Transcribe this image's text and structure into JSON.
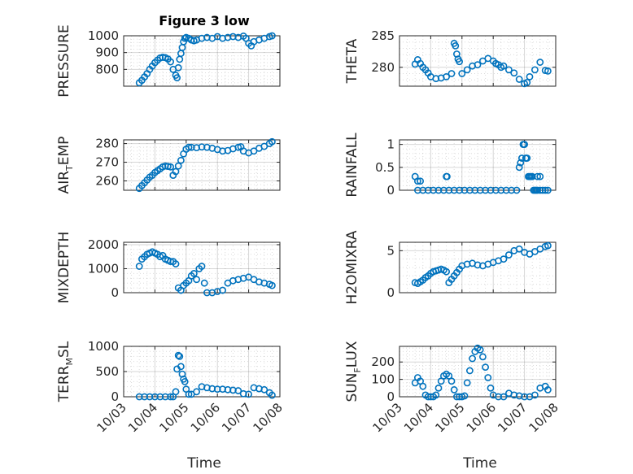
{
  "figure": {
    "title": "Figure 3 low"
  },
  "chart_data": [
    {
      "type": "scatter",
      "panel": "PRESSURE",
      "ylabel": {
        "parts": [
          "PRESSURE"
        ]
      },
      "ylim": [
        700,
        1000
      ],
      "yticks": [
        800,
        900,
        1000
      ],
      "xlim": [
        "2023-10-03",
        "2023-10-08"
      ],
      "grid": true,
      "series": [
        {
          "x": [
            "2023-10-03 12:00",
            "2023-10-03 14:00",
            "2023-10-03 16:00",
            "2023-10-03 18:00",
            "2023-10-03 20:00",
            "2023-10-03 22:00",
            "2023-10-04 00:00",
            "2023-10-04 02:00",
            "2023-10-04 04:00",
            "2023-10-04 06:00",
            "2023-10-04 08:00",
            "2023-10-04 10:00",
            "2023-10-04 12:00",
            "2023-10-04 14:00",
            "2023-10-04 16:00",
            "2023-10-04 17:00",
            "2023-10-04 18:00",
            "2023-10-04 19:00",
            "2023-10-04 20:00",
            "2023-10-04 21:00",
            "2023-10-04 22:00",
            "2023-10-04 23:00",
            "2023-10-05 00:00",
            "2023-10-05 02:00",
            "2023-10-05 04:00",
            "2023-10-05 06:00",
            "2023-10-05 08:00",
            "2023-10-05 12:00",
            "2023-10-05 16:00",
            "2023-10-05 20:00",
            "2023-10-06 00:00",
            "2023-10-06 04:00",
            "2023-10-06 08:00",
            "2023-10-06 12:00",
            "2023-10-06 16:00",
            "2023-10-06 20:00",
            "2023-10-06 22:00",
            "2023-10-07 00:00",
            "2023-10-07 02:00",
            "2023-10-07 04:00",
            "2023-10-07 08:00",
            "2023-10-07 12:00",
            "2023-10-07 16:00",
            "2023-10-07 18:00"
          ],
          "y": [
            720,
            735,
            755,
            775,
            800,
            820,
            840,
            855,
            868,
            872,
            870,
            862,
            845,
            800,
            765,
            750,
            810,
            860,
            895,
            930,
            965,
            985,
            990,
            985,
            975,
            970,
            975,
            985,
            990,
            985,
            995,
            985,
            990,
            995,
            990,
            998,
            985,
            955,
            940,
            965,
            975,
            985,
            995,
            1000
          ]
        }
      ]
    },
    {
      "type": "scatter",
      "panel": "THETA",
      "ylabel": {
        "parts": [
          "THETA"
        ]
      },
      "ylim": [
        277,
        285
      ],
      "yticks": [
        280,
        285
      ],
      "xlim": [
        "2023-10-03",
        "2023-10-08"
      ],
      "grid": true,
      "series": [
        {
          "x": [
            "2023-10-03 12:00",
            "2023-10-03 14:00",
            "2023-10-03 16:00",
            "2023-10-03 18:00",
            "2023-10-03 20:00",
            "2023-10-03 22:00",
            "2023-10-04 00:00",
            "2023-10-04 04:00",
            "2023-10-04 08:00",
            "2023-10-04 12:00",
            "2023-10-04 16:00",
            "2023-10-04 18:00",
            "2023-10-04 19:00",
            "2023-10-04 20:00",
            "2023-10-04 21:00",
            "2023-10-04 22:00",
            "2023-10-05 00:00",
            "2023-10-05 04:00",
            "2023-10-05 08:00",
            "2023-10-05 12:00",
            "2023-10-05 16:00",
            "2023-10-05 20:00",
            "2023-10-06 00:00",
            "2023-10-06 02:00",
            "2023-10-06 04:00",
            "2023-10-06 06:00",
            "2023-10-06 08:00",
            "2023-10-06 12:00",
            "2023-10-06 16:00",
            "2023-10-06 20:00",
            "2023-10-07 00:00",
            "2023-10-07 02:00",
            "2023-10-07 04:00",
            "2023-10-07 08:00",
            "2023-10-07 12:00",
            "2023-10-07 16:00",
            "2023-10-07 18:00"
          ],
          "y": [
            280.5,
            281.2,
            280.6,
            280.0,
            279.6,
            279.1,
            278.5,
            278.2,
            278.3,
            278.5,
            279.0,
            283.8,
            283.4,
            282.1,
            281.3,
            280.9,
            279.0,
            279.6,
            280.2,
            280.4,
            281.0,
            281.4,
            281.0,
            280.6,
            280.4,
            280.0,
            280.2,
            279.6,
            279.1,
            278.1,
            277.4,
            277.6,
            278.5,
            279.6,
            280.8,
            279.5,
            279.4
          ]
        }
      ]
    },
    {
      "type": "scatter",
      "panel": "AIR_TEMP",
      "ylabel": {
        "parts": [
          "AIR",
          "T",
          "EMP"
        ]
      },
      "ylim": [
        255,
        282
      ],
      "yticks": [
        260,
        270,
        280
      ],
      "xlim": [
        "2023-10-03",
        "2023-10-08"
      ],
      "grid": true,
      "series": [
        {
          "x": [
            "2023-10-03 12:00",
            "2023-10-03 14:00",
            "2023-10-03 16:00",
            "2023-10-03 18:00",
            "2023-10-03 20:00",
            "2023-10-03 22:00",
            "2023-10-04 00:00",
            "2023-10-04 02:00",
            "2023-10-04 04:00",
            "2023-10-04 06:00",
            "2023-10-04 08:00",
            "2023-10-04 10:00",
            "2023-10-04 12:00",
            "2023-10-04 14:00",
            "2023-10-04 16:00",
            "2023-10-04 18:00",
            "2023-10-04 20:00",
            "2023-10-04 22:00",
            "2023-10-05 00:00",
            "2023-10-05 02:00",
            "2023-10-05 04:00",
            "2023-10-05 08:00",
            "2023-10-05 12:00",
            "2023-10-05 16:00",
            "2023-10-05 20:00",
            "2023-10-06 00:00",
            "2023-10-06 04:00",
            "2023-10-06 08:00",
            "2023-10-06 12:00",
            "2023-10-06 16:00",
            "2023-10-06 18:00",
            "2023-10-06 20:00",
            "2023-10-07 00:00",
            "2023-10-07 04:00",
            "2023-10-07 08:00",
            "2023-10-07 12:00",
            "2023-10-07 16:00",
            "2023-10-07 18:00"
          ],
          "y": [
            256,
            257.5,
            259,
            260.5,
            262,
            263,
            264.5,
            265.5,
            266.5,
            267.5,
            268,
            267.8,
            267.5,
            263,
            265,
            268,
            271,
            274.5,
            277,
            278,
            278,
            277.8,
            278.2,
            278.0,
            277.5,
            276.8,
            276,
            276.3,
            277.2,
            278,
            278.3,
            276,
            275,
            276,
            277.5,
            278.5,
            280,
            281
          ]
        }
      ]
    },
    {
      "type": "scatter",
      "panel": "RAINFALL",
      "ylabel": {
        "parts": [
          "RAINFALL"
        ]
      },
      "ylim": [
        0,
        1.1
      ],
      "yticks": [
        0,
        0.5,
        1
      ],
      "xlim": [
        "2023-10-03",
        "2023-10-08"
      ],
      "grid": true,
      "series": [
        {
          "x": [
            "2023-10-03 12:00",
            "2023-10-03 14:00",
            "2023-10-03 16:00",
            "2023-10-03 14:00",
            "2023-10-03 18:00",
            "2023-10-03 22:00",
            "2023-10-04 02:00",
            "2023-10-04 06:00",
            "2023-10-04 10:00",
            "2023-10-04 12:00",
            "2023-10-04 12:30",
            "2023-10-04 14:00",
            "2023-10-04 18:00",
            "2023-10-04 22:00",
            "2023-10-05 02:00",
            "2023-10-05 06:00",
            "2023-10-05 10:00",
            "2023-10-05 14:00",
            "2023-10-05 18:00",
            "2023-10-05 22:00",
            "2023-10-06 02:00",
            "2023-10-06 06:00",
            "2023-10-06 10:00",
            "2023-10-06 14:00",
            "2023-10-06 18:00",
            "2023-10-06 20:00",
            "2023-10-06 21:00",
            "2023-10-06 22:00",
            "2023-10-06 23:00",
            "2023-10-07 00:00",
            "2023-10-07 01:00",
            "2023-10-07 02:00",
            "2023-10-07 03:00",
            "2023-10-07 04:00",
            "2023-10-07 05:00",
            "2023-10-07 06:00",
            "2023-10-07 07:00",
            "2023-10-07 08:00",
            "2023-10-07 09:00",
            "2023-10-07 10:00",
            "2023-10-07 12:00",
            "2023-10-07 14:00",
            "2023-10-07 16:00",
            "2023-10-07 18:00",
            "2023-10-07 10:00",
            "2023-10-07 12:00"
          ],
          "y": [
            0.3,
            0.2,
            0.2,
            0,
            0,
            0,
            0,
            0,
            0,
            0.3,
            0.3,
            0,
            0,
            0,
            0,
            0,
            0,
            0,
            0,
            0,
            0,
            0,
            0,
            0,
            0,
            0.5,
            0.6,
            0.7,
            1.0,
            1.0,
            0.7,
            0.7,
            0.3,
            0.3,
            0.3,
            0.3,
            0,
            0,
            0,
            0,
            0,
            0,
            0,
            0,
            0.3,
            0.3
          ]
        }
      ]
    },
    {
      "type": "scatter",
      "panel": "MIXDEPTH",
      "ylabel": {
        "parts": [
          "MIXDEPTH"
        ]
      },
      "ylim": [
        0,
        2100
      ],
      "yticks": [
        0,
        1000,
        2000
      ],
      "xlim": [
        "2023-10-03",
        "2023-10-08"
      ],
      "grid": true,
      "series": [
        {
          "x": [
            "2023-10-03 12:00",
            "2023-10-03 14:00",
            "2023-10-03 16:00",
            "2023-10-03 18:00",
            "2023-10-03 20:00",
            "2023-10-03 22:00",
            "2023-10-04 00:00",
            "2023-10-04 02:00",
            "2023-10-04 04:00",
            "2023-10-04 06:00",
            "2023-10-04 08:00",
            "2023-10-04 10:00",
            "2023-10-04 12:00",
            "2023-10-04 14:00",
            "2023-10-04 16:00",
            "2023-10-04 18:00",
            "2023-10-04 20:00",
            "2023-10-04 22:00",
            "2023-10-05 00:00",
            "2023-10-05 02:00",
            "2023-10-05 04:00",
            "2023-10-05 06:00",
            "2023-10-05 08:00",
            "2023-10-05 10:00",
            "2023-10-05 12:00",
            "2023-10-05 14:00",
            "2023-10-05 16:00",
            "2023-10-05 20:00",
            "2023-10-06 00:00",
            "2023-10-06 04:00",
            "2023-10-06 08:00",
            "2023-10-06 12:00",
            "2023-10-06 16:00",
            "2023-10-06 20:00",
            "2023-10-07 00:00",
            "2023-10-07 04:00",
            "2023-10-07 08:00",
            "2023-10-07 12:00",
            "2023-10-07 16:00",
            "2023-10-07 18:00"
          ],
          "y": [
            1100,
            1400,
            1500,
            1600,
            1650,
            1700,
            1650,
            1600,
            1500,
            1550,
            1400,
            1350,
            1300,
            1300,
            1200,
            200,
            100,
            300,
            400,
            500,
            700,
            800,
            550,
            1000,
            1100,
            400,
            0,
            0,
            50,
            100,
            400,
            500,
            550,
            600,
            650,
            550,
            450,
            400,
            350,
            300
          ]
        }
      ]
    },
    {
      "type": "scatter",
      "panel": "H2OMIXRA",
      "ylabel": {
        "parts": [
          "H2OMIXRA"
        ]
      },
      "ylim": [
        0,
        6
      ],
      "yticks": [
        0,
        5
      ],
      "xlim": [
        "2023-10-03",
        "2023-10-08"
      ],
      "grid": true,
      "series": [
        {
          "x": [
            "2023-10-03 12:00",
            "2023-10-03 14:00",
            "2023-10-03 16:00",
            "2023-10-03 18:00",
            "2023-10-03 20:00",
            "2023-10-03 22:00",
            "2023-10-04 00:00",
            "2023-10-04 02:00",
            "2023-10-04 04:00",
            "2023-10-04 06:00",
            "2023-10-04 08:00",
            "2023-10-04 10:00",
            "2023-10-04 12:00",
            "2023-10-04 14:00",
            "2023-10-04 16:00",
            "2023-10-04 18:00",
            "2023-10-04 20:00",
            "2023-10-04 22:00",
            "2023-10-05 00:00",
            "2023-10-05 04:00",
            "2023-10-05 08:00",
            "2023-10-05 12:00",
            "2023-10-05 16:00",
            "2023-10-05 20:00",
            "2023-10-06 00:00",
            "2023-10-06 04:00",
            "2023-10-06 08:00",
            "2023-10-06 12:00",
            "2023-10-06 16:00",
            "2023-10-06 20:00",
            "2023-10-07 00:00",
            "2023-10-07 04:00",
            "2023-10-07 08:00",
            "2023-10-07 12:00",
            "2023-10-07 16:00",
            "2023-10-07 18:00"
          ],
          "y": [
            1.2,
            1.1,
            1.3,
            1.5,
            1.8,
            2.0,
            2.3,
            2.5,
            2.6,
            2.7,
            2.8,
            2.7,
            2.5,
            1.2,
            1.6,
            2.0,
            2.4,
            2.8,
            3.2,
            3.4,
            3.5,
            3.3,
            3.2,
            3.4,
            3.6,
            3.8,
            4.0,
            4.5,
            5.0,
            5.2,
            4.8,
            4.6,
            4.9,
            5.2,
            5.5,
            5.6
          ]
        }
      ]
    },
    {
      "type": "scatter",
      "panel": "TERR_MSL",
      "ylabel": {
        "parts": [
          "TERR",
          "M",
          "SL"
        ]
      },
      "ylim": [
        0,
        1000
      ],
      "yticks": [
        0,
        500,
        1000
      ],
      "xlim": [
        "2023-10-03",
        "2023-10-08"
      ],
      "grid": true,
      "series": [
        {
          "x": [
            "2023-10-03 12:00",
            "2023-10-03 16:00",
            "2023-10-03 20:00",
            "2023-10-04 00:00",
            "2023-10-04 04:00",
            "2023-10-04 08:00",
            "2023-10-04 12:00",
            "2023-10-04 14:00",
            "2023-10-04 16:00",
            "2023-10-04 17:00",
            "2023-10-04 18:00",
            "2023-10-04 19:00",
            "2023-10-04 20:00",
            "2023-10-04 21:00",
            "2023-10-04 22:00",
            "2023-10-04 23:00",
            "2023-10-05 00:00",
            "2023-10-05 02:00",
            "2023-10-05 04:00",
            "2023-10-05 08:00",
            "2023-10-05 12:00",
            "2023-10-05 16:00",
            "2023-10-05 20:00",
            "2023-10-06 00:00",
            "2023-10-06 04:00",
            "2023-10-06 08:00",
            "2023-10-06 12:00",
            "2023-10-06 16:00",
            "2023-10-06 20:00",
            "2023-10-07 00:00",
            "2023-10-07 04:00",
            "2023-10-07 08:00",
            "2023-10-07 12:00",
            "2023-10-07 16:00",
            "2023-10-07 18:00"
          ],
          "y": [
            0,
            0,
            0,
            0,
            0,
            0,
            0,
            0,
            100,
            550,
            820,
            800,
            600,
            450,
            350,
            300,
            150,
            50,
            50,
            100,
            200,
            180,
            160,
            150,
            150,
            140,
            130,
            120,
            60,
            50,
            180,
            160,
            140,
            80,
            30
          ]
        }
      ]
    },
    {
      "type": "scatter",
      "panel": "SUN_FLUX",
      "ylabel": {
        "parts": [
          "SUN",
          "F",
          "LUX"
        ]
      },
      "ylim": [
        0,
        290
      ],
      "yticks": [
        0,
        100,
        200
      ],
      "xlim": [
        "2023-10-03",
        "2023-10-08"
      ],
      "grid": true,
      "series": [
        {
          "x": [
            "2023-10-03 12:00",
            "2023-10-03 14:00",
            "2023-10-03 16:00",
            "2023-10-03 18:00",
            "2023-10-03 20:00",
            "2023-10-03 22:00",
            "2023-10-04 00:00",
            "2023-10-04 02:00",
            "2023-10-04 04:00",
            "2023-10-04 06:00",
            "2023-10-04 08:00",
            "2023-10-04 10:00",
            "2023-10-04 12:00",
            "2023-10-04 14:00",
            "2023-10-04 16:00",
            "2023-10-04 18:00",
            "2023-10-04 20:00",
            "2023-10-04 22:00",
            "2023-10-05 00:00",
            "2023-10-05 02:00",
            "2023-10-05 04:00",
            "2023-10-05 06:00",
            "2023-10-05 08:00",
            "2023-10-05 10:00",
            "2023-10-05 12:00",
            "2023-10-05 14:00",
            "2023-10-05 16:00",
            "2023-10-05 18:00",
            "2023-10-05 20:00",
            "2023-10-05 22:00",
            "2023-10-06 00:00",
            "2023-10-06 04:00",
            "2023-10-06 08:00",
            "2023-10-06 12:00",
            "2023-10-06 16:00",
            "2023-10-06 20:00",
            "2023-10-07 00:00",
            "2023-10-07 04:00",
            "2023-10-07 08:00",
            "2023-10-07 12:00",
            "2023-10-07 16:00",
            "2023-10-07 18:00"
          ],
          "y": [
            80,
            110,
            90,
            60,
            10,
            0,
            0,
            0,
            10,
            50,
            90,
            120,
            130,
            120,
            90,
            40,
            0,
            0,
            0,
            5,
            80,
            150,
            220,
            260,
            280,
            270,
            230,
            170,
            110,
            50,
            10,
            0,
            0,
            20,
            10,
            5,
            0,
            0,
            10,
            50,
            60,
            40
          ]
        }
      ]
    }
  ],
  "xaxis": {
    "ticks": [
      "10/03",
      "10/04",
      "10/05",
      "10/06",
      "10/07",
      "10/08"
    ],
    "label": "Time"
  }
}
